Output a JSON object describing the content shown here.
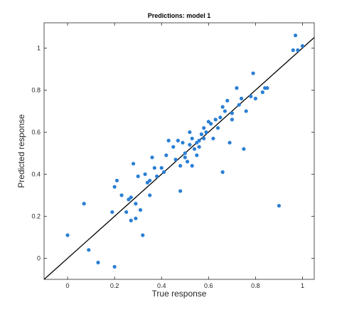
{
  "colors": {
    "points": "#2a7fd4",
    "line": "#000000",
    "axes": "#262626",
    "background": "#ffffff"
  },
  "chart_data": {
    "type": "scatter",
    "title": "Predictions: model 1",
    "xlabel": "True response",
    "ylabel": "Predicted response",
    "xlim": [
      -0.1,
      1.05
    ],
    "ylim": [
      -0.1,
      1.12
    ],
    "xticks": [
      0,
      0.2,
      0.4,
      0.6,
      0.8,
      1
    ],
    "yticks": [
      0,
      0.2,
      0.4,
      0.6,
      0.8,
      1
    ],
    "xtick_labels": [
      "0",
      "0.2",
      "0.4",
      "0.6",
      "0.8",
      "1"
    ],
    "ytick_labels": [
      "0",
      "0.2",
      "0.4",
      "0.6",
      "0.8",
      "1"
    ],
    "grid": false,
    "reference_line": "y = x",
    "series": [
      {
        "points": [
          [
            0.0,
            0.11
          ],
          [
            0.07,
            0.26
          ],
          [
            0.09,
            0.04
          ],
          [
            0.13,
            -0.02
          ],
          [
            0.19,
            0.22
          ],
          [
            0.2,
            -0.04
          ],
          [
            0.2,
            0.34
          ],
          [
            0.21,
            0.37
          ],
          [
            0.23,
            0.3
          ],
          [
            0.25,
            0.22
          ],
          [
            0.26,
            0.28
          ],
          [
            0.27,
            0.29
          ],
          [
            0.27,
            0.18
          ],
          [
            0.28,
            0.45
          ],
          [
            0.29,
            0.19
          ],
          [
            0.29,
            0.26
          ],
          [
            0.3,
            0.39
          ],
          [
            0.31,
            0.23
          ],
          [
            0.32,
            0.11
          ],
          [
            0.33,
            0.4
          ],
          [
            0.34,
            0.36
          ],
          [
            0.35,
            0.37
          ],
          [
            0.35,
            0.3
          ],
          [
            0.36,
            0.48
          ],
          [
            0.37,
            0.43
          ],
          [
            0.38,
            0.39
          ],
          [
            0.4,
            0.43
          ],
          [
            0.41,
            0.41
          ],
          [
            0.42,
            0.49
          ],
          [
            0.43,
            0.56
          ],
          [
            0.45,
            0.53
          ],
          [
            0.46,
            0.47
          ],
          [
            0.47,
            0.56
          ],
          [
            0.48,
            0.32
          ],
          [
            0.48,
            0.44
          ],
          [
            0.49,
            0.55
          ],
          [
            0.5,
            0.48
          ],
          [
            0.5,
            0.5
          ],
          [
            0.51,
            0.46
          ],
          [
            0.52,
            0.54
          ],
          [
            0.52,
            0.6
          ],
          [
            0.53,
            0.57
          ],
          [
            0.53,
            0.44
          ],
          [
            0.54,
            0.52
          ],
          [
            0.55,
            0.55
          ],
          [
            0.55,
            0.49
          ],
          [
            0.56,
            0.56
          ],
          [
            0.56,
            0.53
          ],
          [
            0.57,
            0.59
          ],
          [
            0.58,
            0.57
          ],
          [
            0.58,
            0.62
          ],
          [
            0.59,
            0.6
          ],
          [
            0.6,
            0.65
          ],
          [
            0.61,
            0.64
          ],
          [
            0.62,
            0.57
          ],
          [
            0.63,
            0.66
          ],
          [
            0.64,
            0.62
          ],
          [
            0.65,
            0.67
          ],
          [
            0.66,
            0.41
          ],
          [
            0.66,
            0.72
          ],
          [
            0.67,
            0.7
          ],
          [
            0.68,
            0.75
          ],
          [
            0.69,
            0.55
          ],
          [
            0.7,
            0.66
          ],
          [
            0.7,
            0.69
          ],
          [
            0.72,
            0.81
          ],
          [
            0.73,
            0.73
          ],
          [
            0.74,
            0.76
          ],
          [
            0.75,
            0.52
          ],
          [
            0.76,
            0.7
          ],
          [
            0.78,
            0.77
          ],
          [
            0.79,
            0.88
          ],
          [
            0.8,
            0.76
          ],
          [
            0.83,
            0.79
          ],
          [
            0.84,
            0.81
          ],
          [
            0.85,
            0.81
          ],
          [
            0.9,
            0.25
          ],
          [
            0.96,
            0.99
          ],
          [
            0.97,
            1.06
          ],
          [
            0.98,
            0.99
          ],
          [
            1.0,
            1.01
          ]
        ]
      }
    ]
  }
}
